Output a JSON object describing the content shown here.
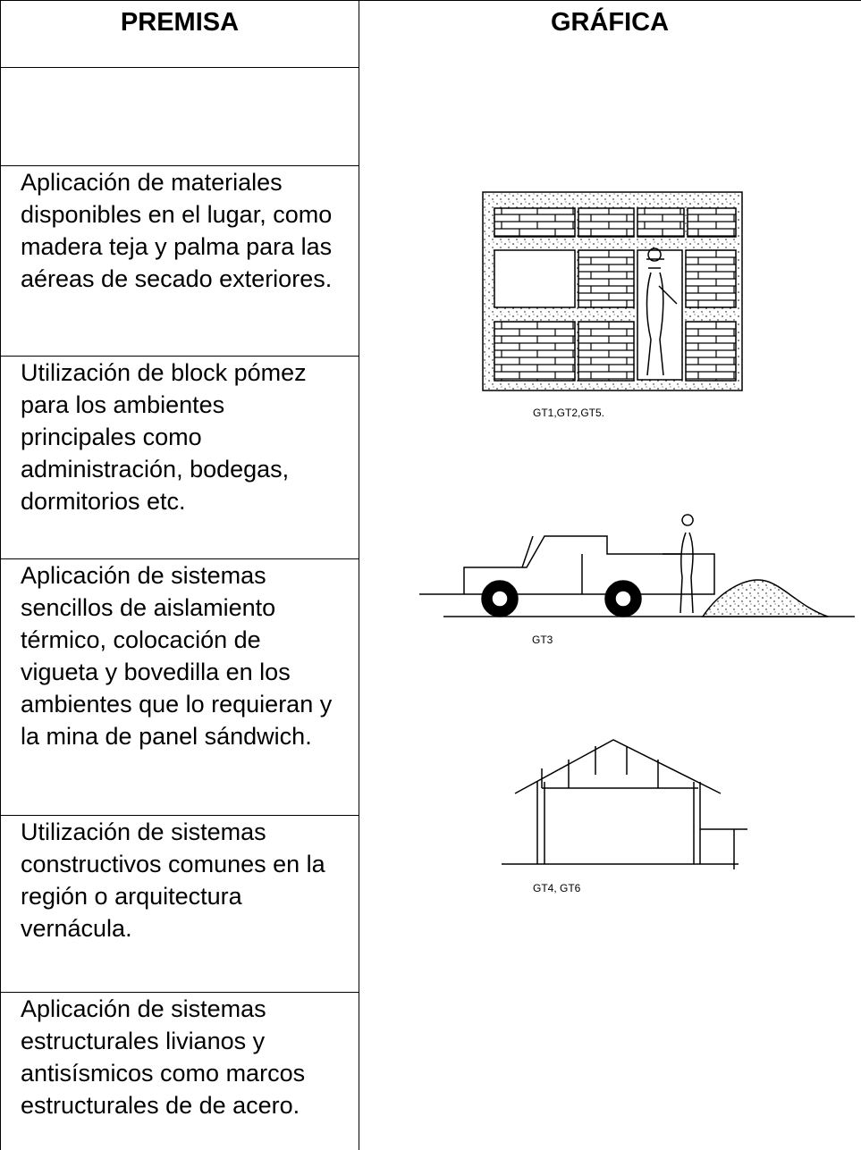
{
  "header": {
    "premisa": "PREMISA",
    "grafica": "GRÁFICA"
  },
  "rows": [
    "Aplicación  de materiales disponibles en el lugar, como madera teja y palma para las aéreas de secado exteriores.",
    "Utilización de block pómez para  los ambientes principales como administración, bodegas, dormitorios etc.",
    "Aplicación  de sistemas sencillos  de aislamiento térmico, colocación de vigueta y bovedilla en  los ambientes que lo requieran y la mina de panel sándwich.",
    "Utilización de sistemas constructivos comunes en la región o arquitectura vernácula.",
    "Aplicación de sistemas estructurales livianos  y antisísmicos como marcos estructurales de de acero."
  ],
  "figures": [
    {
      "caption": "GT1,GT2,GT5."
    },
    {
      "caption": "GT3"
    },
    {
      "caption": "GT4, GT6"
    }
  ]
}
